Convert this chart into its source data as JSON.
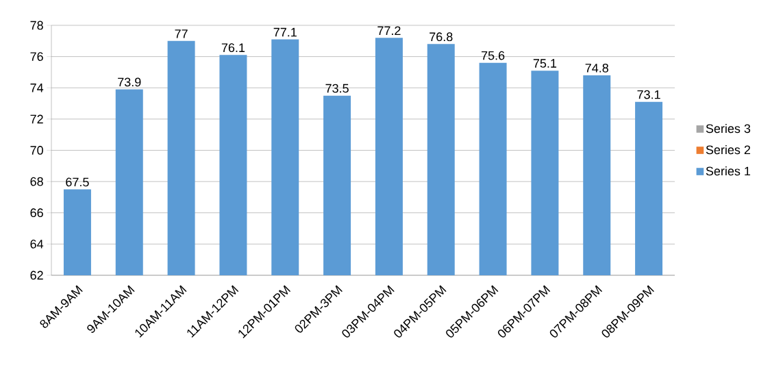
{
  "chart_data": {
    "type": "bar",
    "categories": [
      "8AM-9AM",
      "9AM-10AM",
      "10AM-11AM",
      "11AM-12PM",
      "12PM-01PM",
      "02PM-3PM",
      "03PM-04PM",
      "04PM-05PM",
      "05PM-06PM",
      "06PM-07PM",
      "07PM-08PM",
      "08PM-09PM"
    ],
    "series": [
      {
        "name": "Series 1",
        "color": "#5b9bd5",
        "values": [
          67.5,
          73.9,
          77,
          76.1,
          77.1,
          73.5,
          77.2,
          76.8,
          75.6,
          75.1,
          74.8,
          73.1
        ]
      },
      {
        "name": "Series 2",
        "color": "#ed7d31",
        "values": [
          null,
          null,
          null,
          null,
          null,
          null,
          null,
          null,
          null,
          null,
          null,
          null
        ]
      },
      {
        "name": "Series 3",
        "color": "#a5a5a5",
        "values": [
          null,
          null,
          null,
          null,
          null,
          null,
          null,
          null,
          null,
          null,
          null,
          null
        ]
      }
    ],
    "ylim": [
      62,
      78
    ],
    "yticks": [
      62,
      64,
      66,
      68,
      70,
      72,
      74,
      76,
      78
    ],
    "grid": "y",
    "legend": "right",
    "data_labels": true
  }
}
